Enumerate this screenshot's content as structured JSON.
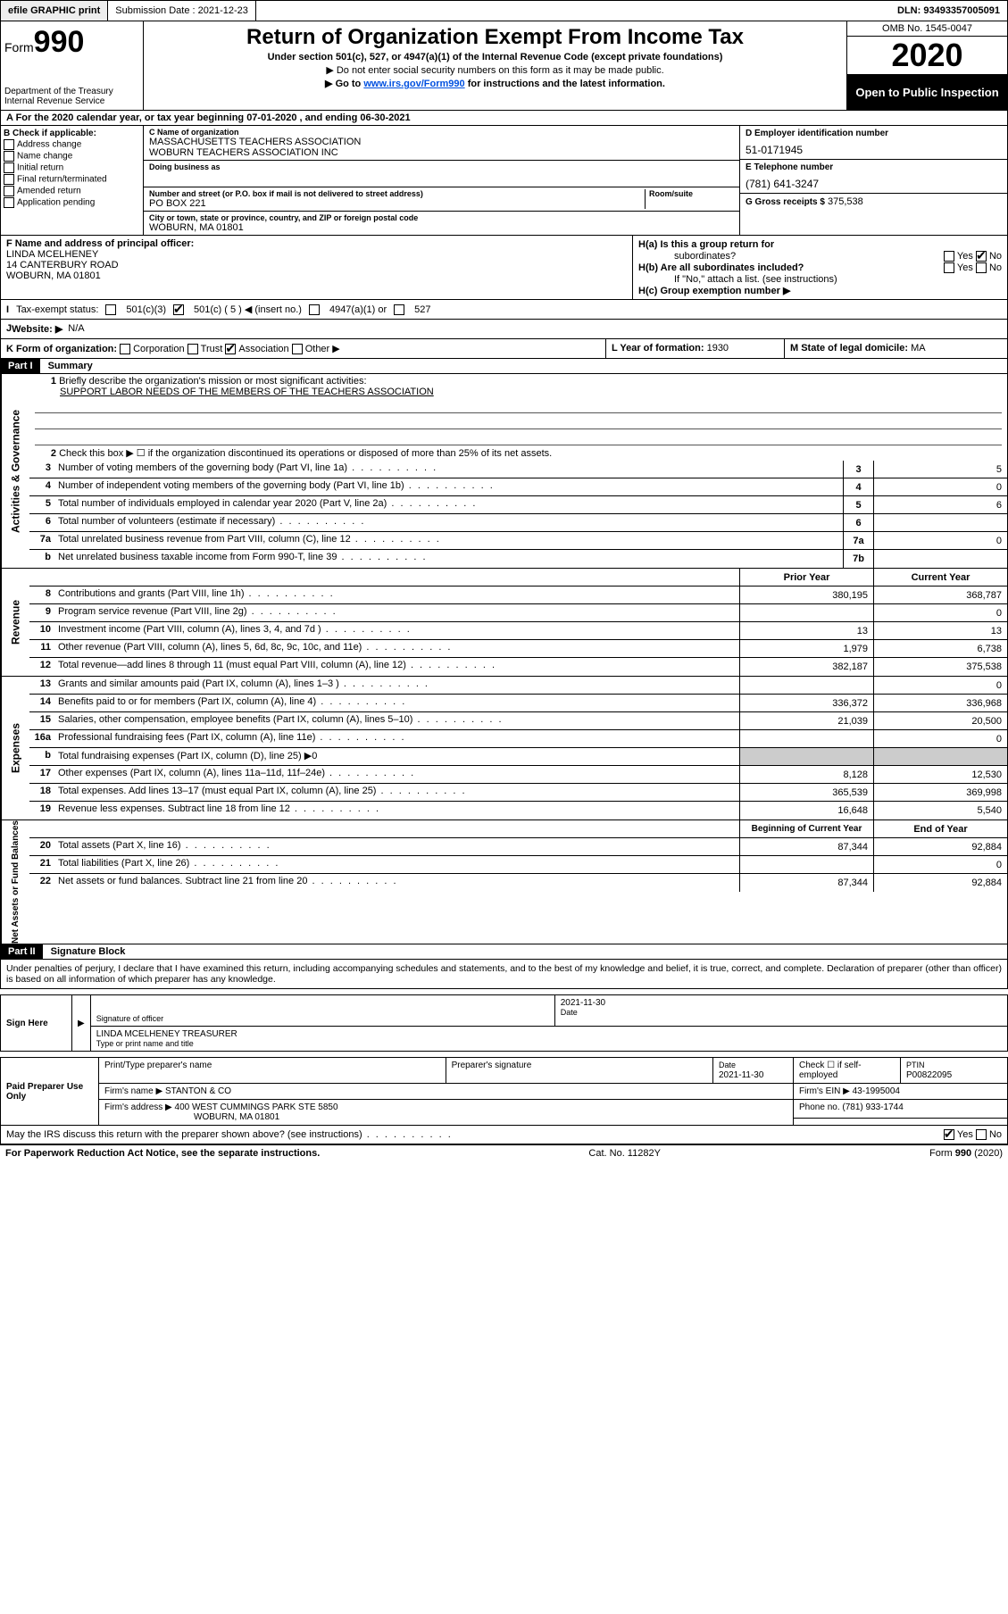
{
  "topbar": {
    "efile": "efile GRAPHIC print",
    "subdate_lbl": "Submission Date : 2021-12-23",
    "dln": "DLN: 93493357005091"
  },
  "header": {
    "form_prefix": "Form",
    "form_num": "990",
    "dept1": "Department of the Treasury",
    "dept2": "Internal Revenue Service",
    "title": "Return of Organization Exempt From Income Tax",
    "sub": "Under section 501(c), 527, or 4947(a)(1) of the Internal Revenue Code (except private foundations)",
    "note1": "▶ Do not enter social security numbers on this form as it may be made public.",
    "note2_pre": "▶ Go to ",
    "note2_link": "www.irs.gov/Form990",
    "note2_post": " for instructions and the latest information.",
    "omb": "OMB No. 1545-0047",
    "year": "2020",
    "open": "Open to Public Inspection"
  },
  "rowA": "A   For the 2020 calendar year, or tax year beginning 07-01-2020    , and ending 06-30-2021",
  "colB": {
    "hdr": "B Check if applicable:",
    "o1": "Address change",
    "o2": "Name change",
    "o3": "Initial return",
    "o4": "Final return/terminated",
    "o5": "Amended return",
    "o6": "Application pending"
  },
  "colC": {
    "name_lbl": "C Name of organization",
    "name1": "MASSACHUSETTS TEACHERS ASSOCIATION",
    "name2": "WOBURN TEACHERS ASSOCIATION INC",
    "dba_lbl": "Doing business as",
    "addr_lbl": "Number and street (or P.O. box if mail is not delivered to street address)",
    "room_lbl": "Room/suite",
    "addr": "PO BOX 221",
    "city_lbl": "City or town, state or province, country, and ZIP or foreign postal code",
    "city": "WOBURN, MA  01801"
  },
  "colD": {
    "ein_lbl": "D Employer identification number",
    "ein": "51-0171945",
    "tel_lbl": "E Telephone number",
    "tel": "(781) 641-3247",
    "gross_lbl": "G Gross receipts $",
    "gross": "375,538"
  },
  "colF": {
    "lbl": "F Name and address of principal officer:",
    "name": "LINDA MCELHENEY",
    "addr1": "14 CANTERBURY ROAD",
    "addr2": "WOBURN, MA  01801"
  },
  "colH": {
    "a_lbl": "H(a)  Is this a group return for",
    "a_sub": "subordinates?",
    "a_yes": "Yes",
    "a_no": "No",
    "b_lbl": "H(b)  Are all subordinates included?",
    "b_yes": "Yes",
    "b_no": "No",
    "b_note": "If \"No,\" attach a list. (see instructions)",
    "c_lbl": "H(c)  Group exemption number ▶"
  },
  "secI": {
    "lbl": "Tax-exempt status:",
    "o1": "501(c)(3)",
    "o2": "501(c) ( 5 ) ◀ (insert no.)",
    "o3": "4947(a)(1) or",
    "o4": "527"
  },
  "secJ": {
    "lbl": "Website: ▶",
    "val": "N/A"
  },
  "secK": {
    "lbl": "K Form of organization:",
    "o1": "Corporation",
    "o2": "Trust",
    "o3": "Association",
    "o4": "Other ▶",
    "L_lbl": "L Year of formation:",
    "L_val": "1930",
    "M_lbl": "M State of legal domicile:",
    "M_val": "MA"
  },
  "part1": {
    "hdr": "Part I",
    "title": "Summary",
    "l1_lbl": "Briefly describe the organization's mission or most significant activities:",
    "l1_val": "SUPPORT LABOR NEEDS OF THE MEMBERS OF THE TEACHERS ASSOCIATION",
    "l2": "Check this box ▶ ☐  if the organization discontinued its operations or disposed of more than 25% of its net assets.",
    "sb_gov": "Activities & Governance",
    "sb_rev": "Revenue",
    "sb_exp": "Expenses",
    "sb_net": "Net Assets or Fund Balances",
    "prior_hdr": "Prior Year",
    "curr_hdr": "Current Year",
    "boy_hdr": "Beginning of Current Year",
    "eoy_hdr": "End of Year",
    "lines_gov": [
      {
        "n": "3",
        "d": "Number of voting members of the governing body (Part VI, line 1a)",
        "box": "3",
        "v": "5"
      },
      {
        "n": "4",
        "d": "Number of independent voting members of the governing body (Part VI, line 1b)",
        "box": "4",
        "v": "0"
      },
      {
        "n": "5",
        "d": "Total number of individuals employed in calendar year 2020 (Part V, line 2a)",
        "box": "5",
        "v": "6"
      },
      {
        "n": "6",
        "d": "Total number of volunteers (estimate if necessary)",
        "box": "6",
        "v": ""
      },
      {
        "n": "7a",
        "d": "Total unrelated business revenue from Part VIII, column (C), line 12",
        "box": "7a",
        "v": "0"
      },
      {
        "n": "b",
        "d": "Net unrelated business taxable income from Form 990-T, line 39",
        "box": "7b",
        "v": ""
      }
    ],
    "lines_rev": [
      {
        "n": "8",
        "d": "Contributions and grants (Part VIII, line 1h)",
        "p": "380,195",
        "c": "368,787"
      },
      {
        "n": "9",
        "d": "Program service revenue (Part VIII, line 2g)",
        "p": "",
        "c": "0"
      },
      {
        "n": "10",
        "d": "Investment income (Part VIII, column (A), lines 3, 4, and 7d )",
        "p": "13",
        "c": "13"
      },
      {
        "n": "11",
        "d": "Other revenue (Part VIII, column (A), lines 5, 6d, 8c, 9c, 10c, and 11e)",
        "p": "1,979",
        "c": "6,738"
      },
      {
        "n": "12",
        "d": "Total revenue—add lines 8 through 11 (must equal Part VIII, column (A), line 12)",
        "p": "382,187",
        "c": "375,538"
      }
    ],
    "lines_exp": [
      {
        "n": "13",
        "d": "Grants and similar amounts paid (Part IX, column (A), lines 1–3 )",
        "p": "",
        "c": "0"
      },
      {
        "n": "14",
        "d": "Benefits paid to or for members (Part IX, column (A), line 4)",
        "p": "336,372",
        "c": "336,968"
      },
      {
        "n": "15",
        "d": "Salaries, other compensation, employee benefits (Part IX, column (A), lines 5–10)",
        "p": "21,039",
        "c": "20,500"
      },
      {
        "n": "16a",
        "d": "Professional fundraising fees (Part IX, column (A), line 11e)",
        "p": "",
        "c": "0"
      },
      {
        "n": "b",
        "d": "Total fundraising expenses (Part IX, column (D), line 25) ▶0",
        "p": "—",
        "c": "—"
      },
      {
        "n": "17",
        "d": "Other expenses (Part IX, column (A), lines 11a–11d, 11f–24e)",
        "p": "8,128",
        "c": "12,530"
      },
      {
        "n": "18",
        "d": "Total expenses. Add lines 13–17 (must equal Part IX, column (A), line 25)",
        "p": "365,539",
        "c": "369,998"
      },
      {
        "n": "19",
        "d": "Revenue less expenses. Subtract line 18 from line 12",
        "p": "16,648",
        "c": "5,540"
      }
    ],
    "lines_net": [
      {
        "n": "20",
        "d": "Total assets (Part X, line 16)",
        "p": "87,344",
        "c": "92,884"
      },
      {
        "n": "21",
        "d": "Total liabilities (Part X, line 26)",
        "p": "",
        "c": "0"
      },
      {
        "n": "22",
        "d": "Net assets or fund balances. Subtract line 21 from line 20",
        "p": "87,344",
        "c": "92,884"
      }
    ]
  },
  "part2": {
    "hdr": "Part II",
    "title": "Signature Block",
    "decl": "Under penalties of perjury, I declare that I have examined this return, including accompanying schedules and statements, and to the best of my knowledge and belief, it is true, correct, and complete. Declaration of preparer (other than officer) is based on all information of which preparer has any knowledge."
  },
  "sign": {
    "here": "Sign Here",
    "sig_lbl": "Signature of officer",
    "date_lbl": "Date",
    "date": "2021-11-30",
    "name": "LINDA MCELHENEY  TREASURER",
    "name_lbl": "Type or print name and title"
  },
  "paid": {
    "hdr": "Paid Preparer Use Only",
    "c1": "Print/Type preparer's name",
    "c2": "Preparer's signature",
    "c3": "Date",
    "c3v": "2021-11-30",
    "c4": "Check ☐  if self-employed",
    "c5": "PTIN",
    "c5v": "P00822095",
    "firm_lbl": "Firm's name    ▶",
    "firm": "STANTON & CO",
    "ein_lbl": "Firm's EIN ▶",
    "ein": "43-1995004",
    "addr_lbl": "Firm's address ▶",
    "addr1": "400 WEST CUMMINGS PARK STE 5850",
    "addr2": "WOBURN, MA  01801",
    "phone_lbl": "Phone no.",
    "phone": "(781) 933-1744",
    "discuss": "May the IRS discuss this return with the preparer shown above? (see instructions)",
    "yes": "Yes",
    "no": "No"
  },
  "footer": {
    "left": "For Paperwork Reduction Act Notice, see the separate instructions.",
    "mid": "Cat. No. 11282Y",
    "right": "Form 990 (2020)"
  }
}
